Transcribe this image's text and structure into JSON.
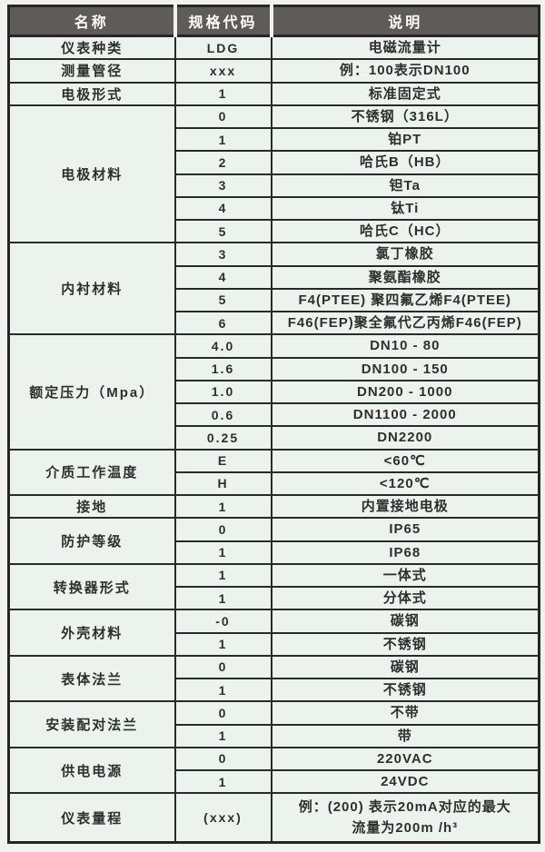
{
  "colors": {
    "header_bg": "#5f5b59",
    "header_text": "#ffffff",
    "cell_bg": "#ecf2ed",
    "border": "#2a2a2a",
    "body_text": "#2f2f2f",
    "page_bg": "#f0f2ef"
  },
  "table": {
    "headers": [
      "名称",
      "规格代码",
      "说明"
    ],
    "groups": [
      {
        "name": "仪表种类",
        "rows": [
          {
            "code": "LDG",
            "desc": "电磁流量计"
          }
        ]
      },
      {
        "name": "测量管径",
        "rows": [
          {
            "code": "xxx",
            "desc": "例：100表示DN100"
          }
        ]
      },
      {
        "name": "电极形式",
        "rows": [
          {
            "code": "1",
            "desc": "标准固定式"
          }
        ]
      },
      {
        "name": "电极材料",
        "rows": [
          {
            "code": "0",
            "desc": "不锈钢（316L）"
          },
          {
            "code": "1",
            "desc": "铂PT"
          },
          {
            "code": "2",
            "desc": "哈氏B（HB）"
          },
          {
            "code": "3",
            "desc": "钽Ta"
          },
          {
            "code": "4",
            "desc": "钛Ti"
          },
          {
            "code": "5",
            "desc": "哈氏C（HC）"
          }
        ]
      },
      {
        "name": "内衬材料",
        "rows": [
          {
            "code": "3",
            "desc": "氯丁橡胶"
          },
          {
            "code": "4",
            "desc": "聚氨酯橡胶"
          },
          {
            "code": "5",
            "desc": "F4(PTEE) 聚四氟乙烯F4(PTEE)"
          },
          {
            "code": "6",
            "desc": "F46(FEP)聚全氟代乙丙烯F46(FEP)"
          }
        ]
      },
      {
        "name": "额定压力（Mpa）",
        "rows": [
          {
            "code": "4.0",
            "desc": "DN10 - 80"
          },
          {
            "code": "1.6",
            "desc": "DN100 - 150"
          },
          {
            "code": "1.0",
            "desc": "DN200 - 1000"
          },
          {
            "code": "0.6",
            "desc": "DN1100 - 2000"
          },
          {
            "code": "0.25",
            "desc": "DN2200"
          }
        ]
      },
      {
        "name": "介质工作温度",
        "rows": [
          {
            "code": "E",
            "desc": "<60℃"
          },
          {
            "code": "H",
            "desc": "<120℃"
          }
        ]
      },
      {
        "name": "接地",
        "rows": [
          {
            "code": "1",
            "desc": "内置接地电极"
          }
        ]
      },
      {
        "name": "防护等级",
        "rows": [
          {
            "code": "0",
            "desc": "IP65"
          },
          {
            "code": "1",
            "desc": "IP68"
          }
        ]
      },
      {
        "name": "转换器形式",
        "rows": [
          {
            "code": "1",
            "desc": "一体式"
          },
          {
            "code": "1",
            "desc": "分体式"
          }
        ]
      },
      {
        "name": "外壳材料",
        "rows": [
          {
            "code": "-0",
            "desc": "碳钢"
          },
          {
            "code": "1",
            "desc": "不锈钢"
          }
        ]
      },
      {
        "name": "表体法兰",
        "rows": [
          {
            "code": "0",
            "desc": "碳钢"
          },
          {
            "code": "1",
            "desc": "不锈钢"
          }
        ]
      },
      {
        "name": "安装配对法兰",
        "rows": [
          {
            "code": "0",
            "desc": "不带"
          },
          {
            "code": "1",
            "desc": "带"
          }
        ]
      },
      {
        "name": "供电电源",
        "rows": [
          {
            "code": "0",
            "desc": "220VAC"
          },
          {
            "code": "1",
            "desc": "24VDC"
          }
        ]
      },
      {
        "name": "仪表量程",
        "rows": [
          {
            "code": "(xxx)",
            "desc": "例：(200) 表示20mA对应的最大\n流量为200m /h³",
            "tall": true
          }
        ]
      }
    ]
  }
}
